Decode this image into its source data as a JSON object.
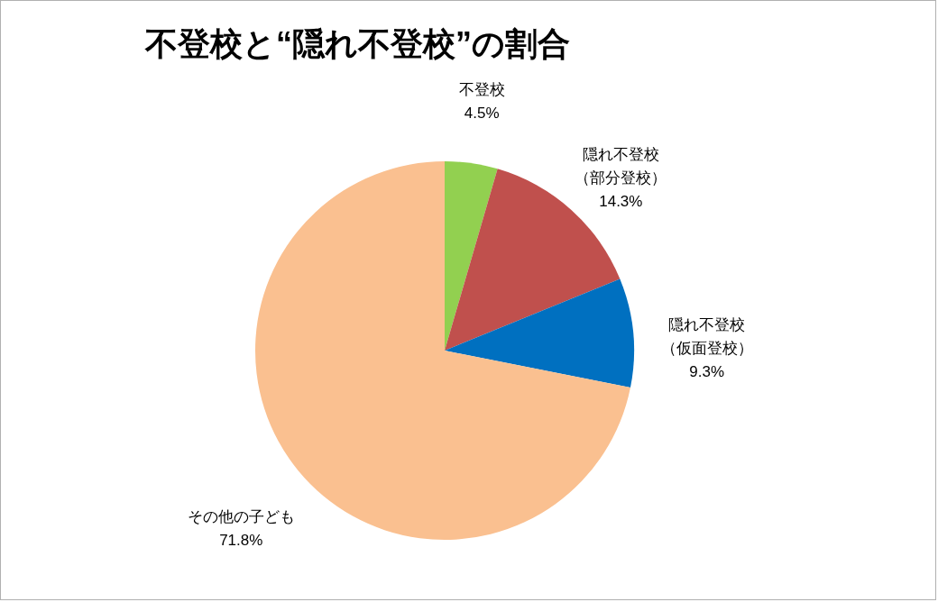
{
  "chart_data": {
    "type": "pie",
    "title": "不登校と“隠れ不登校”の割合",
    "categories": [
      "不登校",
      "隠れ不登校（部分登校）",
      "隠れ不登校（仮面登校）",
      "その他の子ども"
    ],
    "values": [
      4.5,
      14.3,
      9.3,
      71.8
    ],
    "value_labels": [
      "4.5%",
      "14.3%",
      "9.3%",
      "71.8%"
    ],
    "colors": [
      "#92d050",
      "#c0504d",
      "#0070c0",
      "#fac090"
    ],
    "legend": false
  }
}
